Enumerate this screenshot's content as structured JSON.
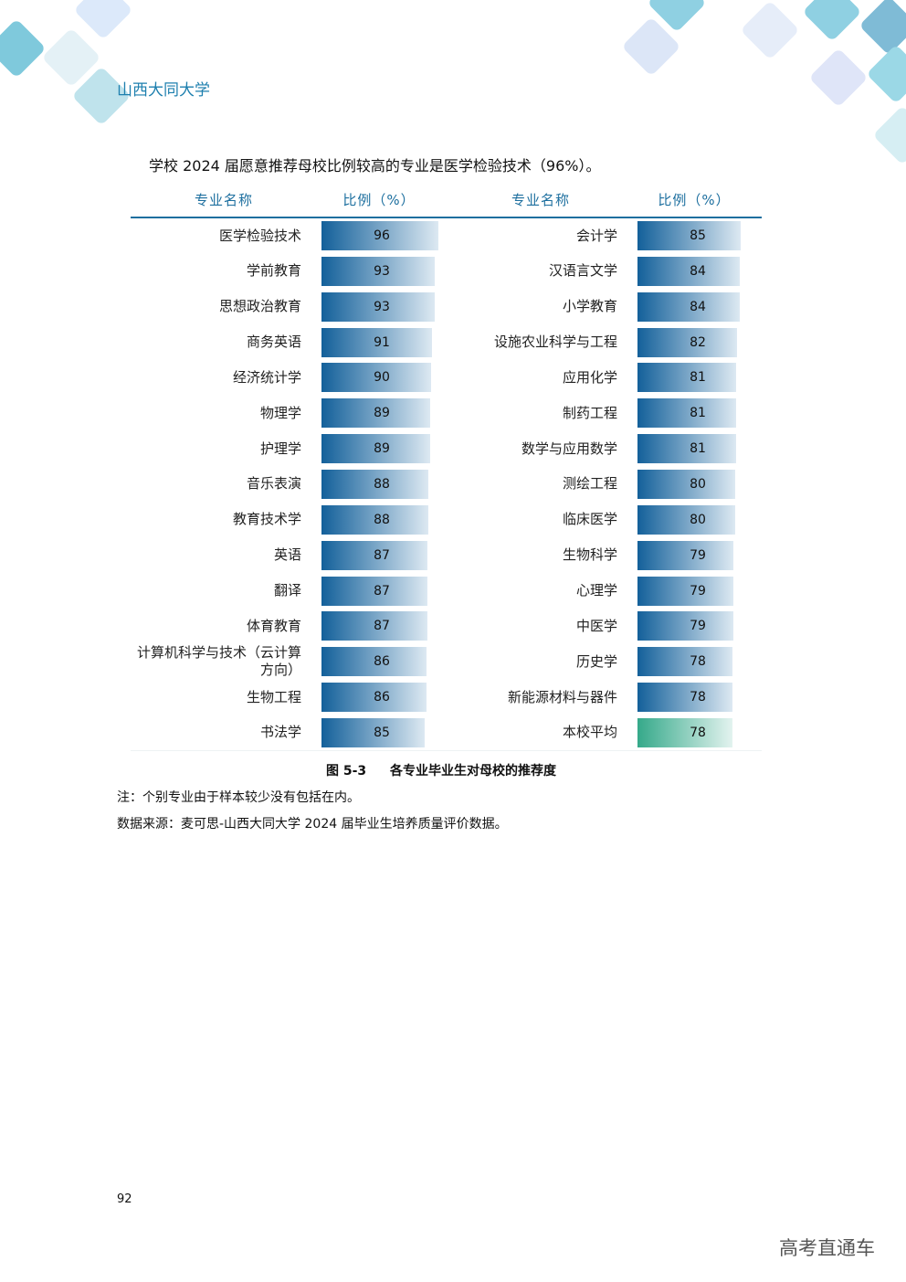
{
  "header": {
    "school": "山西大同大学"
  },
  "intro": "学校 2024 届愿意推荐母校比例较高的专业是医学检验技术（96%）。",
  "table": {
    "columns": [
      "专业名称",
      "比例（%）",
      "专业名称",
      "比例（%）"
    ],
    "bar_color": [
      "#13609a",
      "#dde9f2"
    ],
    "left": [
      {
        "name": "医学检验技术",
        "value": 96
      },
      {
        "name": "学前教育",
        "value": 93
      },
      {
        "name": "思想政治教育",
        "value": 93
      },
      {
        "name": "商务英语",
        "value": 91
      },
      {
        "name": "经济统计学",
        "value": 90
      },
      {
        "name": "物理学",
        "value": 89
      },
      {
        "name": "护理学",
        "value": 89
      },
      {
        "name": "音乐表演",
        "value": 88
      },
      {
        "name": "教育技术学",
        "value": 88
      },
      {
        "name": "英语",
        "value": 87
      },
      {
        "name": "翻译",
        "value": 87
      },
      {
        "name": "体育教育",
        "value": 87
      },
      {
        "name": "计算机科学与技术（云计算方向）",
        "value": 86
      },
      {
        "name": "生物工程",
        "value": 86
      },
      {
        "name": "书法学",
        "value": 85
      }
    ],
    "right": [
      {
        "name": "会计学",
        "value": 85
      },
      {
        "name": "汉语言文学",
        "value": 84
      },
      {
        "name": "小学教育",
        "value": 84
      },
      {
        "name": "设施农业科学与工程",
        "value": 82
      },
      {
        "name": "应用化学",
        "value": 81
      },
      {
        "name": "制药工程",
        "value": 81
      },
      {
        "name": "数学与应用数学",
        "value": 81
      },
      {
        "name": "测绘工程",
        "value": 80
      },
      {
        "name": "临床医学",
        "value": 80
      },
      {
        "name": "生物科学",
        "value": 79
      },
      {
        "name": "心理学",
        "value": 79
      },
      {
        "name": "中医学",
        "value": 79
      },
      {
        "name": "历史学",
        "value": 78
      },
      {
        "name": "新能源材料与器件",
        "value": 78
      },
      {
        "name": "本校平均",
        "value": 78,
        "color": [
          "#35a98a",
          "#e3f3ef"
        ]
      }
    ]
  },
  "caption": {
    "number": "图 5-3",
    "title": "各专业毕业生对母校的推荐度"
  },
  "notes": [
    "注：个别专业由于样本较少没有包括在内。",
    "数据来源：麦可思-山西大同大学 2024 届毕业生培养质量评价数据。"
  ],
  "page_number": "92",
  "watermark": "高考直通车"
}
